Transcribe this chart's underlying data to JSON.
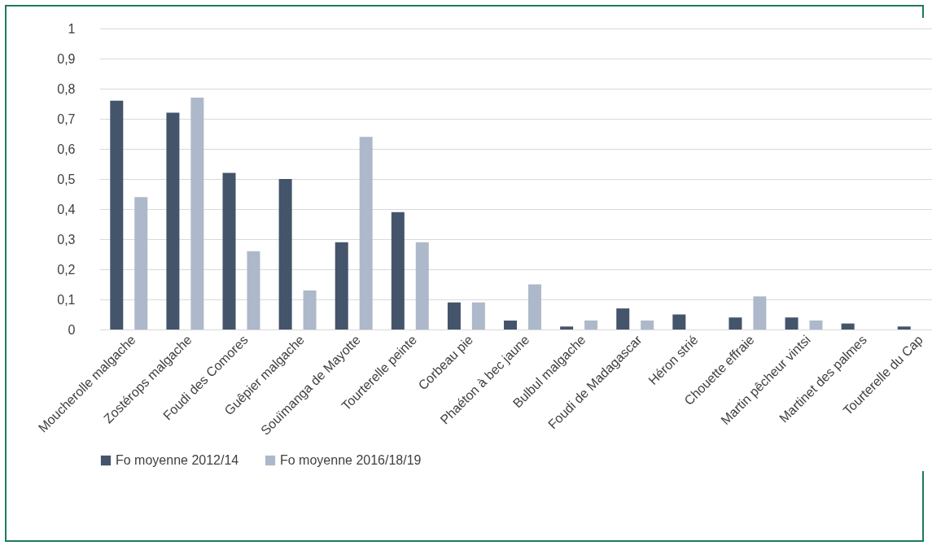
{
  "chart_data": {
    "type": "bar",
    "categories": [
      "Moucherolle malgache",
      "Zostérops malgache",
      "Foudi des Comores",
      "Guêpier malgache",
      "Souïmanga de Mayotte",
      "Tourterelle peinte",
      "Corbeau pie",
      "Phaéton à bec jaune",
      "Bulbul malgache",
      "Foudi de Madagascar",
      "Héron strié",
      "Chouette effraie",
      "Martin pêcheur vintsi",
      "Martinet des palmes",
      "Tourterelle du Cap"
    ],
    "series": [
      {
        "name": "Fo moyenne 2012/14",
        "color": "#44546a",
        "values": [
          0.76,
          0.72,
          0.52,
          0.5,
          0.29,
          0.39,
          0.09,
          0.03,
          0.01,
          0.07,
          0.05,
          0.04,
          0.04,
          0.02,
          0.01
        ]
      },
      {
        "name": "Fo moyenne 2016/18/19",
        "color": "#adb9ca",
        "values": [
          0.44,
          0.77,
          0.26,
          0.13,
          0.64,
          0.29,
          0.09,
          0.15,
          0.03,
          0.03,
          0,
          0.11,
          0.03,
          0,
          0
        ]
      }
    ],
    "ylim": [
      0,
      1
    ],
    "yticks": [
      0,
      {
        "value": 0.1,
        "label": "0,1"
      },
      {
        "value": 0.2,
        "label": "0,2"
      },
      {
        "value": 0.3,
        "label": "0,3"
      },
      {
        "value": 0.4,
        "label": "0,4"
      },
      {
        "value": 0.5,
        "label": "0,5"
      },
      {
        "value": 0.6,
        "label": "0,6"
      },
      {
        "value": 0.7,
        "label": "0,7"
      },
      {
        "value": 0.8,
        "label": "0,8"
      },
      {
        "value": 0.9,
        "label": "0,9"
      },
      1
    ],
    "grid": "y",
    "legend": "bottom"
  }
}
